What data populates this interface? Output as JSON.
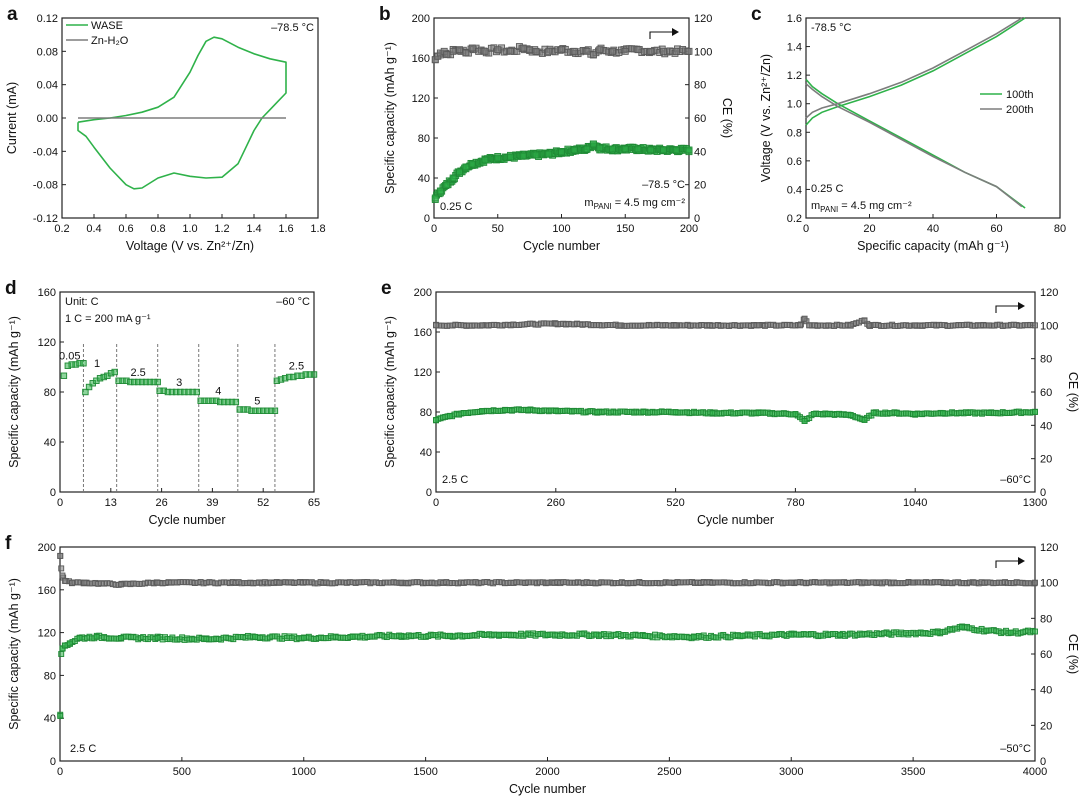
{
  "colors": {
    "green": "#2fb24a",
    "green_edge": "#1f8a35",
    "gray": "#7d7d7d",
    "gray_edge": "#5a5a5a"
  },
  "chart_data": [
    {
      "id": "a",
      "type": "line",
      "panel_label": "a",
      "xlabel": "Voltage (V vs. Zn²⁺/Zn)",
      "ylabel": "Current (mA)",
      "xlim": [
        0.2,
        1.8
      ],
      "ylim": [
        -0.12,
        0.12
      ],
      "xticks": [
        "0.2",
        "0.4",
        "0.6",
        "0.8",
        "1.0",
        "1.2",
        "1.4",
        "1.6",
        "1.8"
      ],
      "yticks": [
        "-0.12",
        "-0.08",
        "-0.04",
        "0.00",
        "0.04",
        "0.08",
        "0.12"
      ],
      "annotations": [
        {
          "text": "–78.5 °C",
          "pos": "top-right"
        }
      ],
      "legend": "top-left",
      "series": [
        {
          "name": "WASE",
          "color": "green",
          "x": [
            0.3,
            0.4,
            0.5,
            0.6,
            0.7,
            0.8,
            0.9,
            1.0,
            1.05,
            1.1,
            1.15,
            1.2,
            1.3,
            1.4,
            1.5,
            1.6,
            1.6,
            1.55,
            1.5,
            1.45,
            1.4,
            1.35,
            1.3,
            1.2,
            1.1,
            1.0,
            0.9,
            0.8,
            0.7,
            0.65,
            0.6,
            0.5,
            0.4,
            0.35,
            0.3,
            0.3
          ],
          "y": [
            -0.005,
            -0.002,
            0.0,
            0.003,
            0.007,
            0.013,
            0.025,
            0.055,
            0.075,
            0.092,
            0.097,
            0.095,
            0.085,
            0.077,
            0.071,
            0.067,
            0.03,
            0.02,
            0.01,
            0.0,
            -0.015,
            -0.035,
            -0.055,
            -0.071,
            -0.072,
            -0.07,
            -0.066,
            -0.072,
            -0.084,
            -0.085,
            -0.08,
            -0.06,
            -0.035,
            -0.022,
            -0.015,
            -0.005
          ]
        },
        {
          "name": "Zn-H₂O",
          "color": "gray",
          "x": [
            0.3,
            1.6
          ],
          "y": [
            0.0,
            0.0
          ]
        }
      ]
    },
    {
      "id": "b",
      "type": "scatter",
      "panel_label": "b",
      "xlabel": "Cycle number",
      "ylabel": "Specific capacity (mAh g⁻¹)",
      "ylabel2": "CE (%)",
      "xlim": [
        0,
        200
      ],
      "ylim": [
        0,
        200
      ],
      "ylim2": [
        0,
        120
      ],
      "xticks": [
        "0",
        "50",
        "100",
        "150",
        "200"
      ],
      "yticks": [
        "0",
        "40",
        "80",
        "120",
        "160",
        "200"
      ],
      "yticks2": [
        "0",
        "20",
        "40",
        "60",
        "80",
        "100",
        "120"
      ],
      "annotations": [
        {
          "text": "0.25 C",
          "pos": "bottom-left"
        },
        {
          "text": "–78.5 °C",
          "pos": "bottom-right"
        },
        {
          "text": "m",
          "sub": "PANI",
          "rest": " = 4.5 mg cm⁻²",
          "pos": "bottom-right"
        }
      ],
      "capacity": {
        "x": [
          1,
          5,
          10,
          15,
          20,
          25,
          30,
          40,
          50,
          60,
          70,
          80,
          90,
          100,
          110,
          120,
          125,
          130,
          140,
          150,
          160,
          170,
          180,
          190,
          200
        ],
        "y": [
          20,
          27,
          33,
          40,
          46,
          51,
          54,
          58,
          60,
          61,
          62,
          63,
          64,
          66,
          68,
          69,
          74,
          70,
          69,
          69,
          69,
          68,
          68,
          68,
          68
        ]
      },
      "ce": {
        "x": [
          1,
          3,
          5,
          8,
          10,
          15,
          20,
          25,
          30,
          40,
          50,
          60,
          70,
          75,
          80,
          90,
          100,
          110,
          120,
          125,
          130,
          140,
          150,
          160,
          170,
          180,
          190,
          200
        ],
        "y": [
          95,
          97,
          99,
          100,
          98,
          100,
          101,
          99,
          102,
          100,
          101,
          100,
          102,
          101,
          100,
          100,
          101,
          100,
          100,
          98,
          101,
          100,
          100,
          101,
          100,
          100,
          100,
          100
        ]
      }
    },
    {
      "id": "c",
      "type": "line",
      "panel_label": "c",
      "xlabel": "Specific capacity (mAh g⁻¹)",
      "ylabel": "Voltage (V vs. Zn²⁺/Zn)",
      "xlim": [
        0,
        80
      ],
      "ylim": [
        0.2,
        1.6
      ],
      "xticks": [
        "0",
        "20",
        "40",
        "60",
        "80"
      ],
      "yticks": [
        "0.2",
        "0.4",
        "0.6",
        "0.8",
        "1.0",
        "1.2",
        "1.4",
        "1.6"
      ],
      "annotations": [
        {
          "text": "-78.5 °C",
          "pos": "top-left"
        },
        {
          "text": "0.25 C",
          "pos": "bottom-left"
        },
        {
          "text": "m",
          "sub": "PANI",
          "rest": " = 4.5 mg cm⁻²",
          "pos": "bottom-left"
        }
      ],
      "legend": "right",
      "series": [
        {
          "name": "100th",
          "color": "green",
          "charge": {
            "x": [
              0,
              2,
              5,
              10,
              20,
              30,
              40,
              50,
              60,
              69
            ],
            "y": [
              0.85,
              0.9,
              0.94,
              0.98,
              1.05,
              1.13,
              1.23,
              1.35,
              1.47,
              1.6
            ]
          },
          "discharge": {
            "x": [
              0,
              2,
              5,
              10,
              20,
              30,
              40,
              50,
              60,
              69
            ],
            "y": [
              1.17,
              1.12,
              1.07,
              1.0,
              0.88,
              0.76,
              0.64,
              0.52,
              0.42,
              0.27
            ]
          }
        },
        {
          "name": "200th",
          "color": "gray",
          "charge": {
            "x": [
              0,
              2,
              5,
              10,
              20,
              30,
              40,
              50,
              60,
              68
            ],
            "y": [
              0.9,
              0.94,
              0.97,
              1.0,
              1.07,
              1.15,
              1.25,
              1.37,
              1.49,
              1.6
            ]
          },
          "discharge": {
            "x": [
              0,
              2,
              5,
              10,
              20,
              30,
              40,
              50,
              60,
              68
            ],
            "y": [
              1.14,
              1.1,
              1.05,
              0.98,
              0.87,
              0.75,
              0.63,
              0.52,
              0.42,
              0.28
            ]
          }
        }
      ]
    },
    {
      "id": "d",
      "type": "scatter",
      "panel_label": "d",
      "xlabel": "Cycle number",
      "ylabel": "Specific capacity (mAh g⁻¹)",
      "xlim": [
        0,
        65
      ],
      "ylim": [
        0,
        160
      ],
      "xticks": [
        "0",
        "13",
        "26",
        "39",
        "52",
        "65"
      ],
      "yticks": [
        "0",
        "40",
        "80",
        "120",
        "160"
      ],
      "annotations": [
        {
          "text": "Unit: C",
          "pos": "top-left"
        },
        {
          "text": "1 C = 200 mA g⁻¹",
          "pos": "top-left"
        },
        {
          "text": "–60 °C",
          "pos": "top-right"
        }
      ],
      "rate_labels": [
        {
          "text": "0.05",
          "x": 2.5,
          "y": 106
        },
        {
          "text": "1",
          "x": 9.5,
          "y": 100
        },
        {
          "text": "2.5",
          "x": 20,
          "y": 93
        },
        {
          "text": "3",
          "x": 30.5,
          "y": 85
        },
        {
          "text": "4",
          "x": 40.5,
          "y": 78
        },
        {
          "text": "5",
          "x": 50.5,
          "y": 70
        },
        {
          "text": "2.5",
          "x": 60.5,
          "y": 98
        }
      ],
      "dividers": [
        6,
        14.5,
        25,
        35.5,
        45.5,
        55
      ],
      "segments": [
        {
          "x_start": 1,
          "x_end": 6,
          "y": [
            93,
            101,
            102,
            102,
            103,
            103
          ]
        },
        {
          "x_start": 6.5,
          "x_end": 14,
          "y": [
            80,
            84,
            87,
            89,
            91,
            92,
            93,
            95,
            96
          ]
        },
        {
          "x_start": 15,
          "x_end": 25,
          "y": [
            89,
            89,
            89,
            88,
            88,
            88,
            88,
            88,
            88,
            88,
            88
          ]
        },
        {
          "x_start": 25.5,
          "x_end": 35,
          "y": [
            81,
            81,
            80,
            80,
            80,
            80,
            80,
            80,
            80,
            80
          ]
        },
        {
          "x_start": 36,
          "x_end": 45,
          "y": [
            73,
            73,
            73,
            73,
            73,
            72,
            72,
            72,
            72,
            72
          ]
        },
        {
          "x_start": 46,
          "x_end": 55,
          "y": [
            66,
            66,
            66,
            65,
            65,
            65,
            65,
            65,
            65,
            65
          ]
        },
        {
          "x_start": 55.5,
          "x_end": 65,
          "y": [
            89,
            90,
            91,
            92,
            92,
            93,
            93,
            94,
            94,
            94
          ]
        }
      ]
    },
    {
      "id": "e",
      "type": "scatter",
      "panel_label": "e",
      "xlabel": "Cycle number",
      "ylabel": "Specific capacity (mAh g⁻¹)",
      "ylabel2": "CE (%)",
      "xlim": [
        0,
        1300
      ],
      "ylim": [
        0,
        200
      ],
      "ylim2": [
        0,
        120
      ],
      "xticks": [
        "0",
        "260",
        "520",
        "780",
        "1040",
        "1300"
      ],
      "yticks": [
        "0",
        "40",
        "80",
        "120",
        "160",
        "200"
      ],
      "yticks2": [
        "0",
        "20",
        "40",
        "60",
        "80",
        "100",
        "120"
      ],
      "annotations": [
        {
          "text": "2.5 C",
          "pos": "bottom-left"
        },
        {
          "text": "–60°C",
          "pos": "bottom-right"
        }
      ],
      "capacity": {
        "x": [
          0,
          30,
          60,
          100,
          150,
          200,
          260,
          350,
          450,
          520,
          600,
          700,
          780,
          800,
          820,
          850,
          900,
          930,
          950,
          1000,
          1040,
          1100,
          1200,
          1300
        ],
        "y": [
          72,
          76,
          79,
          81,
          82,
          82,
          81,
          80,
          80,
          80,
          79,
          79,
          78,
          71,
          78,
          78,
          77,
          72,
          79,
          79,
          78,
          79,
          79,
          80
        ]
      },
      "ce": {
        "x": [
          0,
          100,
          260,
          400,
          520,
          700,
          790,
          800,
          810,
          900,
          930,
          940,
          1040,
          1200,
          1300
        ],
        "y": [
          100,
          100,
          101,
          100,
          100,
          100,
          100,
          104,
          100,
          100,
          103,
          100,
          100,
          100,
          100
        ]
      }
    },
    {
      "id": "f",
      "type": "scatter",
      "panel_label": "f",
      "xlabel": "Cycle number",
      "ylabel": "Specific capacity (mAh g⁻¹)",
      "ylabel2": "CE (%)",
      "xlim": [
        0,
        4000
      ],
      "ylim": [
        0,
        200
      ],
      "ylim2": [
        0,
        120
      ],
      "xticks": [
        "0",
        "500",
        "1000",
        "1500",
        "2000",
        "2500",
        "3000",
        "3500",
        "4000"
      ],
      "yticks": [
        "0",
        "40",
        "80",
        "120",
        "160",
        "200"
      ],
      "yticks2": [
        "0",
        "20",
        "40",
        "60",
        "80",
        "100",
        "120"
      ],
      "annotations": [
        {
          "text": "2.5 C",
          "pos": "bottom-left"
        },
        {
          "text": "–50°C",
          "pos": "bottom-right"
        }
      ],
      "capacity": {
        "x": [
          1,
          5,
          10,
          20,
          40,
          80,
          150,
          250,
          400,
          600,
          800,
          1000,
          1200,
          1400,
          1600,
          1800,
          2000,
          2200,
          2400,
          2600,
          2800,
          3000,
          3200,
          3400,
          3600,
          3700,
          3800,
          3900,
          4000
        ],
        "y": [
          42,
          100,
          105,
          108,
          110,
          115,
          116,
          115,
          115,
          114,
          116,
          115,
          116,
          117,
          117,
          118,
          118,
          118,
          117,
          116,
          117,
          118,
          118,
          119,
          120,
          125,
          122,
          120,
          121
        ]
      },
      "ce": {
        "x": [
          1,
          5,
          10,
          20,
          50,
          100,
          250,
          400,
          900,
          1400,
          2000,
          2500,
          3000,
          3500,
          3750,
          4000
        ],
        "y": [
          115,
          108,
          104,
          101,
          100,
          100,
          99,
          100,
          100,
          100,
          100,
          100,
          100,
          100,
          100,
          100
        ]
      }
    }
  ]
}
